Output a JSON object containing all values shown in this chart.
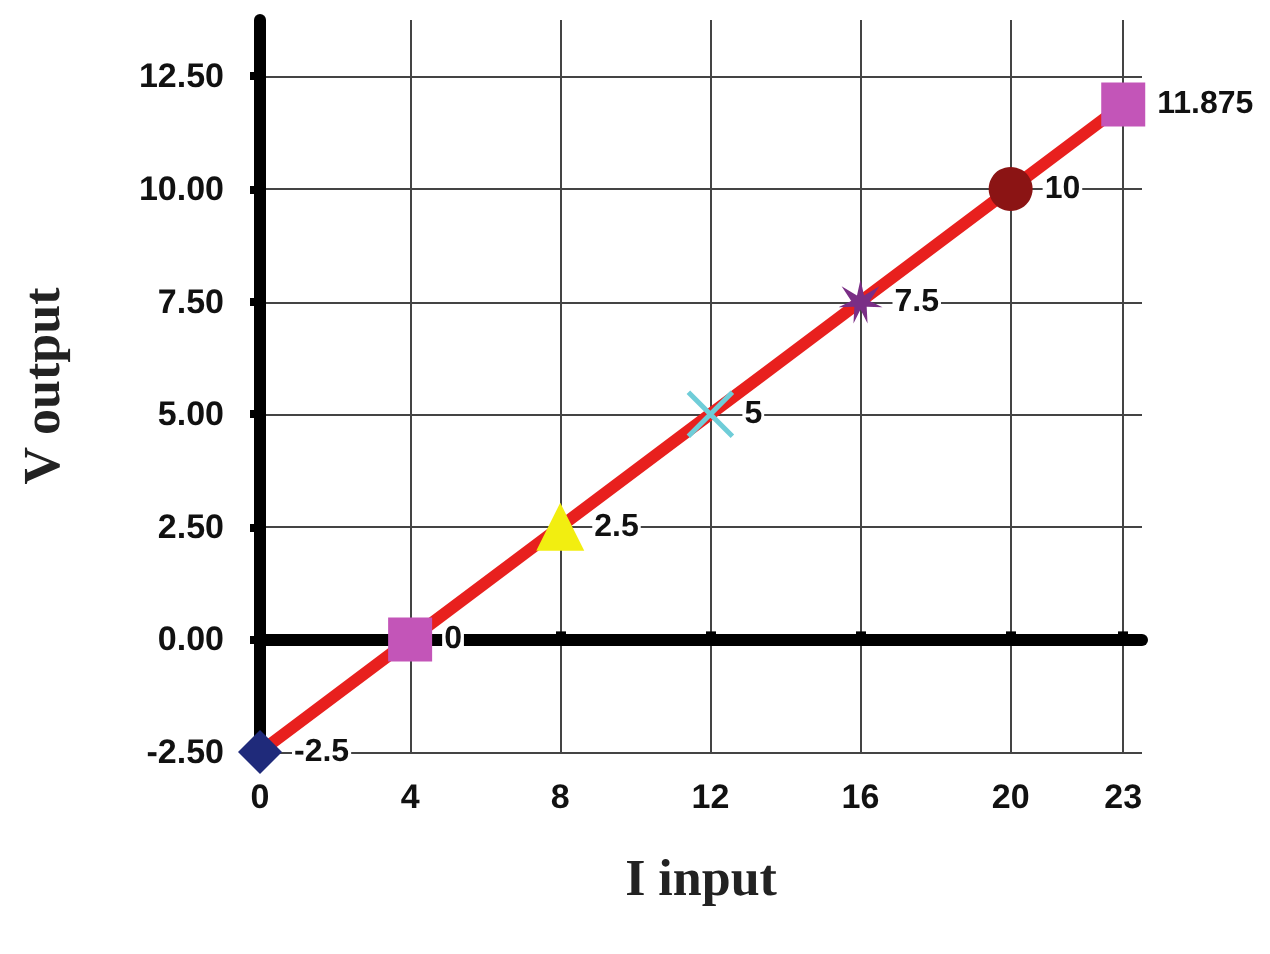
{
  "chart_data": {
    "type": "line",
    "xlabel": "I input",
    "ylabel": "V output",
    "x": [
      0,
      4,
      8,
      12,
      16,
      20,
      23
    ],
    "xlim": [
      0,
      23.5
    ],
    "xticks": [
      0,
      4,
      8,
      12,
      16,
      20,
      23
    ],
    "ylim": [
      -2.5,
      13.75
    ],
    "yticks": [
      {
        "value": -2.5,
        "label": "-2.50"
      },
      {
        "value": 0,
        "label": "0.00"
      },
      {
        "value": 2.5,
        "label": "2.50"
      },
      {
        "value": 5,
        "label": "5.00"
      },
      {
        "value": 7.5,
        "label": "7.50"
      },
      {
        "value": 10,
        "label": "10.00"
      },
      {
        "value": 12.5,
        "label": "12.50"
      }
    ],
    "grid": true,
    "data_labels": true,
    "series": [
      {
        "color": "#e8201e",
        "marker": "none",
        "values": [
          -2.5,
          0,
          2.5,
          5,
          7.5,
          10,
          11.875
        ]
      },
      {
        "type": "scatter",
        "color": "#1f2a7a",
        "marker": "diamond",
        "x": [
          0
        ],
        "values": [
          -2.5
        ],
        "value_labels": [
          null
        ]
      },
      {
        "type": "scatter",
        "color": "#c355b8",
        "marker": "square",
        "x": [
          4
        ],
        "values": [
          0
        ],
        "value_labels": [
          null
        ]
      },
      {
        "type": "scatter",
        "color": "#f2ee10",
        "marker": "triangle",
        "x": [
          8
        ],
        "values": [
          2.5
        ],
        "value_labels": [
          null
        ]
      },
      {
        "type": "scatter",
        "color": "#6fcdd8",
        "marker": "cross",
        "x": [
          12
        ],
        "values": [
          5
        ],
        "value_labels": [
          null
        ]
      },
      {
        "type": "scatter",
        "color": "#7a2e86",
        "marker": "star",
        "x": [
          16
        ],
        "values": [
          7.5
        ],
        "value_labels": [
          null
        ]
      },
      {
        "type": "scatter",
        "color": "#8b1414",
        "marker": "circle",
        "x": [
          20
        ],
        "values": [
          10
        ],
        "value_labels": [
          null
        ]
      },
      {
        "type": "scatter",
        "color": "#c355b8",
        "marker": "square",
        "x": [
          23
        ],
        "values": [
          11.875
        ],
        "value_labels": [
          null
        ]
      }
    ]
  }
}
